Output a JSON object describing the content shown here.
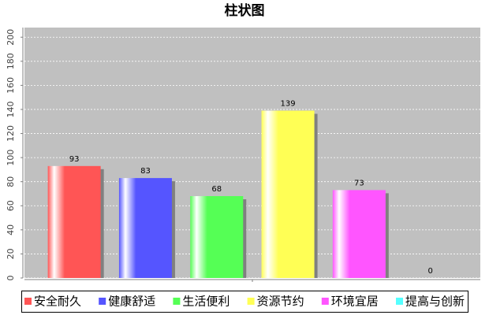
{
  "chart_data": {
    "type": "bar",
    "title": "柱状图",
    "categories": [
      null
    ],
    "series": [
      {
        "name": "安全耐久",
        "color": "#ff5555",
        "values": [
          93
        ]
      },
      {
        "name": "健康舒适",
        "color": "#5555ff",
        "values": [
          83
        ]
      },
      {
        "name": "生活便利",
        "color": "#55ff55",
        "values": [
          68
        ]
      },
      {
        "name": "资源节约",
        "color": "#ffff55",
        "values": [
          139
        ]
      },
      {
        "name": "环境宜居",
        "color": "#ff55ff",
        "values": [
          73
        ]
      },
      {
        "name": "提高与创新",
        "color": "#55ffff",
        "values": [
          0
        ]
      }
    ],
    "ylim": [
      0,
      208
    ],
    "yticks": [
      0,
      20,
      40,
      60,
      80,
      100,
      120,
      140,
      160,
      180,
      200
    ],
    "grid": true
  }
}
